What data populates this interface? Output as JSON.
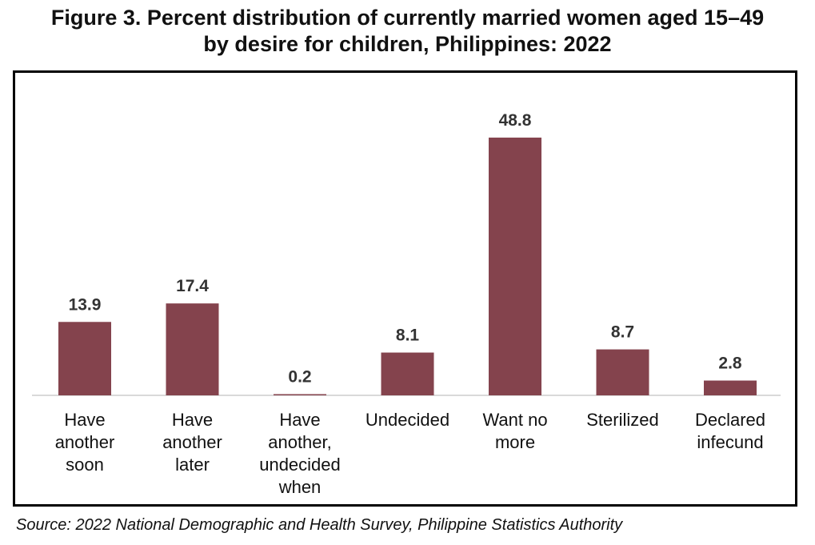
{
  "figure": {
    "title_line1": "Figure 3. Percent distribution of currently married women aged 15–49",
    "title_line2": "by desire for children, Philippines: 2022",
    "source": "Source: 2022 National Demographic and Health Survey, Philippine Statistics Authority"
  },
  "colors": {
    "bar": "#84434d",
    "axis": "#d9d9d9"
  },
  "chart_data": {
    "type": "bar",
    "categories": [
      [
        "Have",
        "another",
        "soon"
      ],
      [
        "Have",
        "another",
        "later"
      ],
      [
        "Have",
        "another,",
        "undecided",
        "when"
      ],
      [
        "Undecided"
      ],
      [
        "Want no",
        "more"
      ],
      [
        "Sterilized"
      ],
      [
        "Declared",
        "infecund"
      ]
    ],
    "values": [
      13.9,
      17.4,
      0.2,
      8.1,
      48.8,
      8.7,
      2.8
    ],
    "labels": [
      "13.9",
      "17.4",
      "0.2",
      "8.1",
      "48.8",
      "8.7",
      "2.8"
    ],
    "ylim": [
      0,
      55
    ],
    "grid": false,
    "legend": false
  }
}
